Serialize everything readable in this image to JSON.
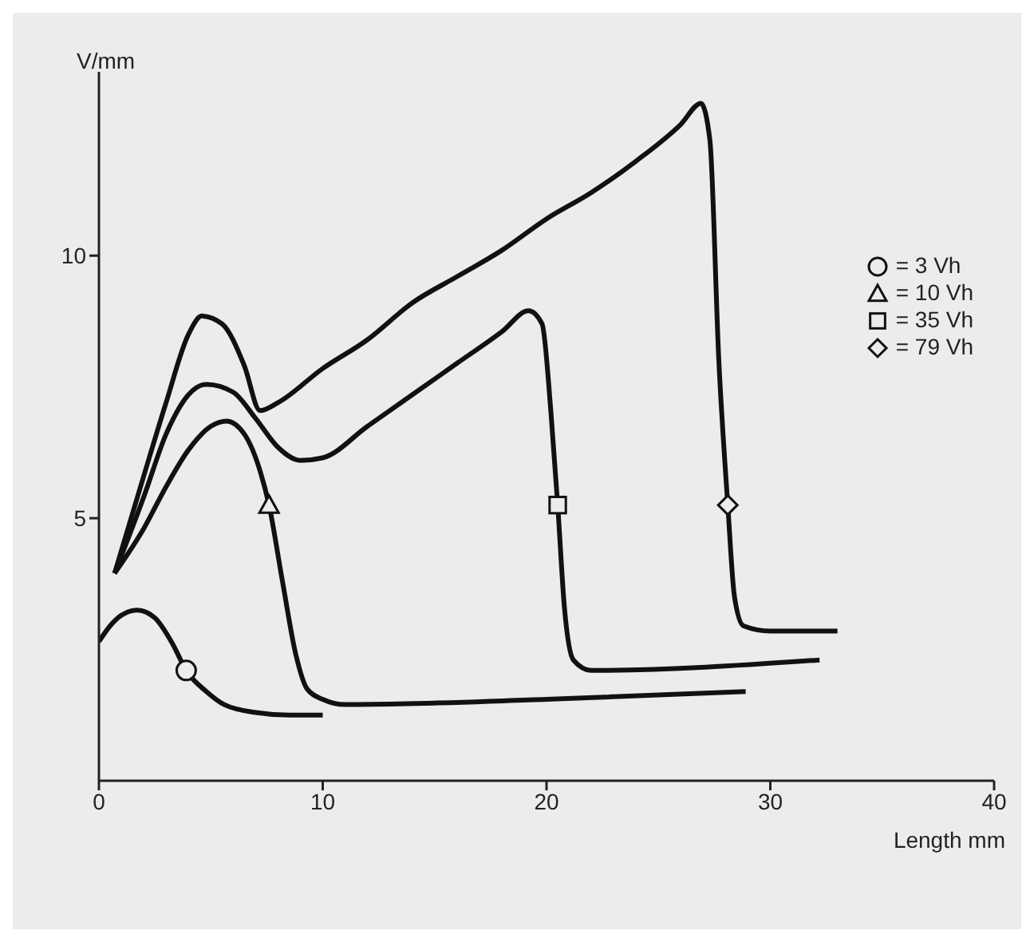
{
  "chart_data": {
    "type": "line",
    "xlabel": "Length mm",
    "ylabel": "V/mm",
    "xlim": [
      0,
      40
    ],
    "xticks": [
      0,
      10,
      20,
      30,
      40
    ],
    "ylim": [
      0,
      13.5
    ],
    "yticks": [
      5,
      10
    ],
    "grid": false,
    "legend": "top right",
    "line_style": "solid",
    "series": [
      {
        "color": "#111111",
        "x": [
          0,
          0.5,
          1,
          1.7,
          2.5,
          3.3,
          3.9,
          4.8,
          5.6,
          7,
          8.5,
          10
        ],
        "values": [
          2.65,
          2.95,
          3.15,
          3.25,
          3.1,
          2.6,
          2.1,
          1.7,
          1.45,
          1.3,
          1.25,
          1.25
        ]
      },
      {
        "color": "#111111",
        "x": [
          0.7,
          2,
          3,
          4,
          5,
          5.7,
          6.5,
          7.2,
          7.6,
          8.2,
          8.8,
          9.3,
          10,
          11,
          20,
          28.9
        ],
        "values": [
          3.95,
          4.8,
          5.6,
          6.3,
          6.75,
          6.85,
          6.6,
          5.9,
          5.25,
          3.8,
          2.4,
          1.75,
          1.55,
          1.45,
          1.55,
          1.7
        ]
      },
      {
        "color": "#111111",
        "x": [
          0.7,
          2,
          3,
          4,
          4.8,
          6,
          7,
          8,
          9,
          10,
          12,
          14,
          16,
          18,
          19.2,
          19.8,
          20.2,
          20.5,
          20.8,
          21.2,
          22,
          32.2
        ],
        "values": [
          3.95,
          5.4,
          6.6,
          7.35,
          7.55,
          7.4,
          6.9,
          6.35,
          6.1,
          6.15,
          6.75,
          7.35,
          7.95,
          8.55,
          8.95,
          8.7,
          7,
          5.25,
          3.3,
          2.3,
          2.1,
          2.3
        ]
      },
      {
        "color": "#111111",
        "x": [
          0.7,
          2,
          3,
          4,
          4.6,
          5.5,
          6.5,
          7.2,
          8,
          10,
          12,
          14,
          16,
          18,
          20,
          22,
          24,
          26,
          26.9,
          27.3,
          27.7,
          28.1,
          28.4,
          28.8,
          30,
          33
        ],
        "values": [
          3.95,
          5.8,
          7.2,
          8.5,
          8.85,
          8.7,
          7.9,
          7.05,
          7.2,
          7.85,
          8.4,
          9.1,
          9.6,
          10.1,
          10.7,
          11.2,
          11.8,
          12.5,
          12.9,
          12.2,
          8,
          5.25,
          3.5,
          2.95,
          2.85,
          2.85
        ]
      },
      {
        "type": "scatter",
        "name": "= 3 Vh",
        "marker": "circle",
        "color": "#111111",
        "x": [
          3.9
        ],
        "values": [
          2.1
        ]
      },
      {
        "type": "scatter",
        "name": "= 10 Vh",
        "marker": "triangle",
        "color": "#111111",
        "x": [
          7.6
        ],
        "values": [
          5.25
        ]
      },
      {
        "type": "scatter",
        "name": "= 35 Vh",
        "marker": "square",
        "color": "#111111",
        "x": [
          20.5
        ],
        "values": [
          5.25
        ]
      },
      {
        "type": "scatter",
        "name": "= 79 Vh",
        "marker": "diamond",
        "color": "#111111",
        "x": [
          28.1
        ],
        "values": [
          5.25
        ]
      }
    ]
  }
}
